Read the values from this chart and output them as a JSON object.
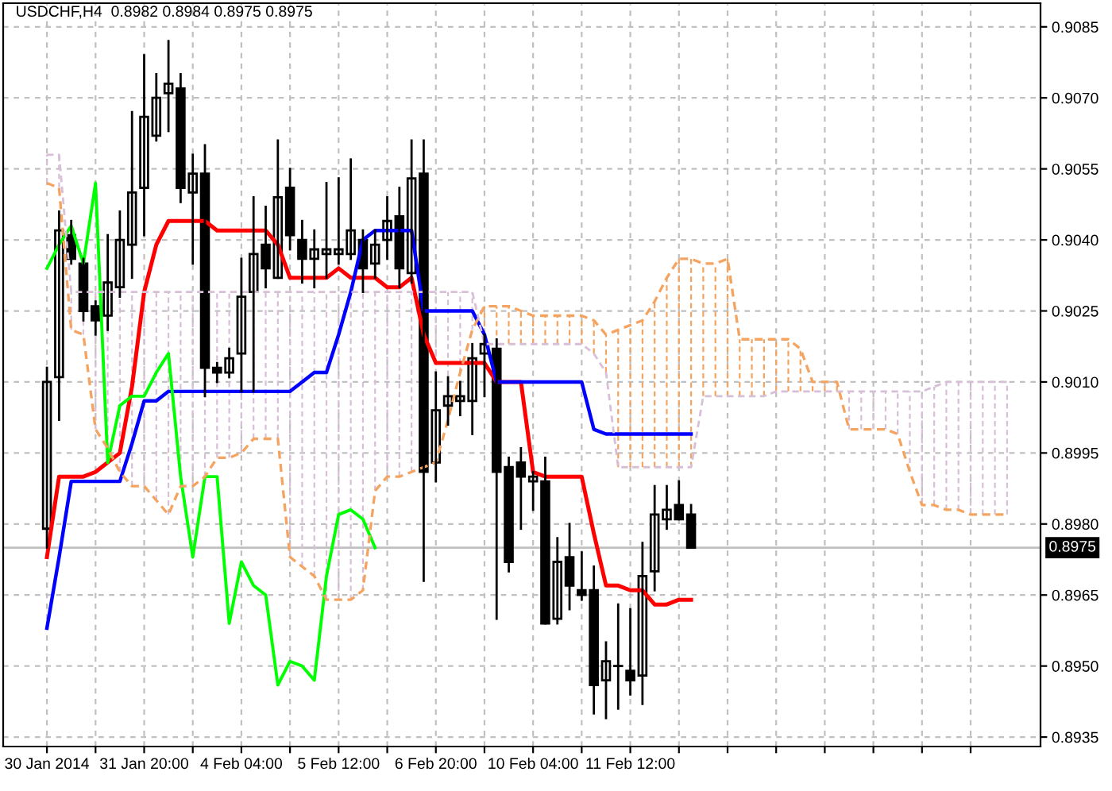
{
  "chart_data": {
    "type": "candlestick",
    "title": "USDCHF,H4  0.8982 0.8984 0.8975 0.8975",
    "categories": [
      "30 Jan 2014",
      null,
      null,
      null,
      null,
      null,
      null,
      null,
      "31 Jan 20:00",
      null,
      null,
      null,
      null,
      null,
      null,
      null,
      "4 Feb 04:00",
      null,
      null,
      null,
      null,
      null,
      null,
      null,
      "5 Feb 12:00",
      null,
      null,
      null,
      null,
      null,
      null,
      null,
      "6 Feb 20:00",
      null,
      null,
      null,
      null,
      null,
      null,
      null,
      "10 Feb 04:00",
      null,
      null,
      null,
      null,
      null,
      null,
      null,
      "11 Feb 12:00",
      null,
      null,
      null,
      null,
      null,
      null,
      null,
      null,
      null,
      null,
      null,
      null,
      null,
      null,
      null,
      null,
      null,
      null,
      null,
      null,
      null,
      null,
      null,
      null,
      null,
      null,
      null,
      null,
      null,
      null,
      null
    ],
    "ohlc": [
      [
        0.8979,
        0.9013,
        0.8975,
        0.901
      ],
      [
        0.9011,
        0.9046,
        0.9002,
        0.9042
      ],
      [
        0.9041,
        0.9044,
        0.9035,
        0.9036
      ],
      [
        0.9035,
        0.9036,
        0.9023,
        0.9025
      ],
      [
        0.9026,
        0.9027,
        0.902,
        0.9023
      ],
      [
        0.9024,
        0.9041,
        0.9021,
        0.9031
      ],
      [
        0.903,
        0.9046,
        0.9028,
        0.904
      ],
      [
        0.9039,
        0.9067,
        0.9032,
        0.905
      ],
      [
        0.9051,
        0.9079,
        0.9041,
        0.9066
      ],
      [
        0.9062,
        0.9075,
        0.9061,
        0.907
      ],
      [
        0.9071,
        0.9082,
        0.9063,
        0.9073
      ],
      [
        0.9072,
        0.9075,
        0.9048,
        0.9051
      ],
      [
        0.905,
        0.9058,
        0.9035,
        0.9054
      ],
      [
        0.9054,
        0.906,
        0.9007,
        0.9013
      ],
      [
        0.9013,
        0.9014,
        0.901,
        0.9012
      ],
      [
        0.9012,
        0.9017,
        0.9011,
        0.9015
      ],
      [
        0.9016,
        0.9036,
        0.9008,
        0.9028
      ],
      [
        0.9029,
        0.9049,
        0.9008,
        0.9037
      ],
      [
        0.9039,
        0.9047,
        0.903,
        0.9034
      ],
      [
        0.9032,
        0.9061,
        0.9032,
        0.9049
      ],
      [
        0.9051,
        0.9055,
        0.9038,
        0.9041
      ],
      [
        0.904,
        0.9044,
        0.9031,
        0.9036
      ],
      [
        0.9036,
        0.9042,
        0.903,
        0.9038
      ],
      [
        0.9037,
        0.9052,
        0.9032,
        0.9038
      ],
      [
        0.9037,
        0.9053,
        0.9035,
        0.9038
      ],
      [
        0.9037,
        0.9057,
        0.9036,
        0.9042
      ],
      [
        0.904,
        0.9042,
        0.9029,
        0.9034
      ],
      [
        0.9035,
        0.9042,
        0.9032,
        0.9039
      ],
      [
        0.904,
        0.9049,
        0.9036,
        0.9044
      ],
      [
        0.9045,
        0.9051,
        0.903,
        0.9034
      ],
      [
        0.9033,
        0.9061,
        0.9031,
        0.9053
      ],
      [
        0.9054,
        0.9061,
        0.8968,
        0.8991
      ],
      [
        0.8993,
        0.9012,
        0.8989,
        0.9004
      ],
      [
        0.9005,
        0.9011,
        0.9001,
        0.9007
      ],
      [
        0.9006,
        0.901,
        0.9003,
        0.9007
      ],
      [
        0.9006,
        0.9018,
        0.8999,
        0.9015
      ],
      [
        0.9016,
        0.902,
        0.9007,
        0.9018
      ],
      [
        0.9017,
        0.9019,
        0.896,
        0.8991
      ],
      [
        0.8992,
        0.8994,
        0.897,
        0.8972
      ],
      [
        0.8993,
        0.8996,
        0.8979,
        0.899
      ],
      [
        0.8989,
        0.8991,
        0.8983,
        0.899
      ],
      [
        0.8989,
        0.8994,
        0.8959,
        0.8959
      ],
      [
        0.896,
        0.8977,
        0.8959,
        0.8972
      ],
      [
        0.8973,
        0.898,
        0.8962,
        0.8967
      ],
      [
        0.8966,
        0.8974,
        0.8964,
        0.8965
      ],
      [
        0.8966,
        0.8971,
        0.894,
        0.8946
      ],
      [
        0.8947,
        0.8955,
        0.8939,
        0.8951
      ],
      [
        0.895,
        0.8963,
        0.8941,
        0.895
      ],
      [
        0.8949,
        0.8962,
        0.8944,
        0.8947
      ],
      [
        0.8948,
        0.8976,
        0.8942,
        0.8969
      ],
      [
        0.897,
        0.8988,
        0.8966,
        0.8982
      ],
      [
        0.8981,
        0.8988,
        0.8979,
        0.8983
      ],
      [
        0.8984,
        0.8989,
        0.8981,
        0.8981
      ],
      [
        0.8982,
        0.8984,
        0.8975,
        0.8975
      ],
      null,
      null,
      null,
      null,
      null,
      null,
      null,
      null,
      null,
      null,
      null,
      null,
      null,
      null,
      null,
      null,
      null,
      null,
      null,
      null,
      null,
      null,
      null,
      null,
      null,
      null
    ],
    "series": [
      {
        "type": "line",
        "color": "#ff0000",
        "line_style": "solid",
        "values": [
          0.8973,
          0.899,
          0.899,
          0.899,
          0.8991,
          0.8993,
          0.8995,
          0.9009,
          0.9029,
          0.9039,
          0.9044,
          0.9044,
          0.9044,
          0.9044,
          0.9042,
          0.9042,
          0.9042,
          0.9042,
          0.9042,
          0.9039,
          0.9032,
          0.9032,
          0.9032,
          0.9032,
          0.9034,
          0.9032,
          0.9032,
          0.9032,
          0.903,
          0.903,
          0.9032,
          0.902,
          0.9014,
          0.9014,
          0.9014,
          0.9014,
          0.9014,
          0.901,
          0.901,
          0.901,
          0.8991,
          0.899,
          0.899,
          0.899,
          0.899,
          0.8978,
          0.8967,
          0.8967,
          0.8966,
          0.8966,
          0.8963,
          0.8963,
          0.8964,
          0.8964,
          null,
          null,
          null,
          null,
          null,
          null,
          null,
          null,
          null,
          null,
          null,
          null,
          null,
          null,
          null,
          null,
          null,
          null,
          null,
          null,
          null,
          null,
          null,
          null,
          null,
          null
        ]
      },
      {
        "type": "line",
        "color": "#0000ff",
        "line_style": "solid",
        "values": [
          0.8958,
          0.8973,
          0.8989,
          0.8989,
          0.8989,
          0.8989,
          0.8989,
          0.8997,
          0.9006,
          0.9006,
          0.9008,
          0.9008,
          0.9008,
          0.9008,
          0.9008,
          0.9008,
          0.9008,
          0.9008,
          0.9008,
          0.9008,
          0.9008,
          0.901,
          0.9012,
          0.9012,
          0.902,
          0.9029,
          0.904,
          0.9042,
          0.9042,
          0.9042,
          0.9042,
          0.9025,
          0.9025,
          0.9025,
          0.9025,
          0.9025,
          0.902,
          0.901,
          0.901,
          0.901,
          0.901,
          0.901,
          0.901,
          0.901,
          0.901,
          0.9,
          0.8999,
          0.8999,
          0.8999,
          0.8999,
          0.8999,
          0.8999,
          0.8999,
          0.8999,
          null,
          null,
          null,
          null,
          null,
          null,
          null,
          null,
          null,
          null,
          null,
          null,
          null,
          null,
          null,
          null,
          null,
          null,
          null,
          null,
          null,
          null,
          null,
          null,
          null,
          null
        ]
      },
      {
        "type": "line",
        "color": "#00ff00",
        "line_style": "solid",
        "values": [
          0.9034,
          0.9039,
          0.9043,
          0.9035,
          0.9052,
          0.8993,
          0.9005,
          0.9007,
          0.9007,
          0.9012,
          0.9016,
          0.899,
          0.8973,
          0.899,
          0.899,
          0.8959,
          0.8972,
          0.8967,
          0.8965,
          0.8946,
          0.8951,
          0.895,
          0.8947,
          0.8969,
          0.8982,
          0.8983,
          0.8981,
          0.8975,
          null,
          null,
          null,
          null,
          null,
          null,
          null,
          null,
          null,
          null,
          null,
          null,
          null,
          null,
          null,
          null,
          null,
          null,
          null,
          null,
          null,
          null,
          null,
          null,
          null,
          null,
          null,
          null,
          null,
          null,
          null,
          null,
          null,
          null,
          null,
          null,
          null,
          null,
          null,
          null,
          null,
          null,
          null,
          null,
          null,
          null,
          null,
          null,
          null,
          null,
          null,
          null
        ]
      },
      {
        "type": "line",
        "color": "#f4a460",
        "line_style": "dashed",
        "values": [
          0.9052,
          0.9051,
          0.9021,
          0.902,
          0.9,
          0.8996,
          0.8991,
          0.8988,
          0.8988,
          0.8985,
          0.8982,
          0.8988,
          0.8988,
          0.899,
          0.8994,
          0.8994,
          0.8995,
          0.8998,
          0.8998,
          0.8998,
          0.8973,
          0.8971,
          0.8969,
          0.8964,
          0.8964,
          0.8964,
          0.8966,
          0.8987,
          0.899,
          0.899,
          0.8991,
          0.8992,
          0.8993,
          0.9002,
          0.9012,
          0.9021,
          0.9026,
          0.9026,
          0.9026,
          0.9025,
          0.9024,
          0.9024,
          0.9024,
          0.9024,
          0.9024,
          0.9023,
          0.902,
          0.9021,
          0.9022,
          0.9023,
          0.9027,
          0.9032,
          0.9036,
          0.9036,
          0.9035,
          0.9035,
          0.9036,
          0.9019,
          0.9019,
          0.9019,
          0.9019,
          0.9019,
          0.9017,
          0.901,
          0.901,
          0.901,
          0.9,
          0.9,
          0.9,
          0.9,
          0.8999,
          0.8991,
          0.8984,
          0.8984,
          0.8983,
          0.8983,
          0.8982,
          0.8982,
          0.8982,
          0.8982
        ]
      },
      {
        "type": "line",
        "color": "#d8bfd8",
        "line_style": "dashed",
        "values": [
          0.9058,
          0.9058,
          0.9029,
          0.9029,
          0.9029,
          0.9029,
          0.9029,
          0.9029,
          0.9029,
          0.9029,
          0.9029,
          0.9029,
          0.9029,
          0.9029,
          0.9029,
          0.9029,
          0.9029,
          0.9029,
          0.9029,
          0.9029,
          0.9029,
          0.9029,
          0.9029,
          0.9029,
          0.9029,
          0.9029,
          0.9029,
          0.9029,
          0.9029,
          0.9029,
          0.9029,
          0.9029,
          0.9029,
          0.9029,
          0.9029,
          0.9029,
          0.9018,
          0.9018,
          0.9018,
          0.9018,
          0.9018,
          0.9018,
          0.9018,
          0.9018,
          0.9018,
          0.9016,
          0.9012,
          0.8992,
          0.8992,
          0.8992,
          0.8992,
          0.8992,
          0.8992,
          0.8992,
          0.9007,
          0.9007,
          0.9007,
          0.9007,
          0.9007,
          0.9007,
          0.9008,
          0.9008,
          0.9008,
          0.9008,
          0.9008,
          0.9008,
          0.9008,
          0.9008,
          0.9008,
          0.9008,
          0.9008,
          0.9008,
          0.9008,
          0.9009,
          0.901,
          0.901,
          0.901,
          0.901,
          0.901,
          0.901
        ]
      }
    ],
    "ylim": [
      0.8933,
      0.909
    ],
    "yticks": [
      0.9085,
      {
        "value": 0.907,
        "label": "0.9070"
      },
      0.9055,
      {
        "value": 0.904,
        "label": "0.9040"
      },
      0.9025,
      {
        "value": 0.901,
        "label": "0.9010"
      },
      0.8995,
      {
        "value": 0.898,
        "label": "0.8980"
      },
      0.8965,
      {
        "value": 0.895,
        "label": "0.8950"
      },
      0.8935
    ],
    "ref_lines": [
      {
        "axis": "y",
        "value": 0.8975,
        "label": "0.8975",
        "color": "#c0c0c0"
      }
    ],
    "grid": true
  }
}
